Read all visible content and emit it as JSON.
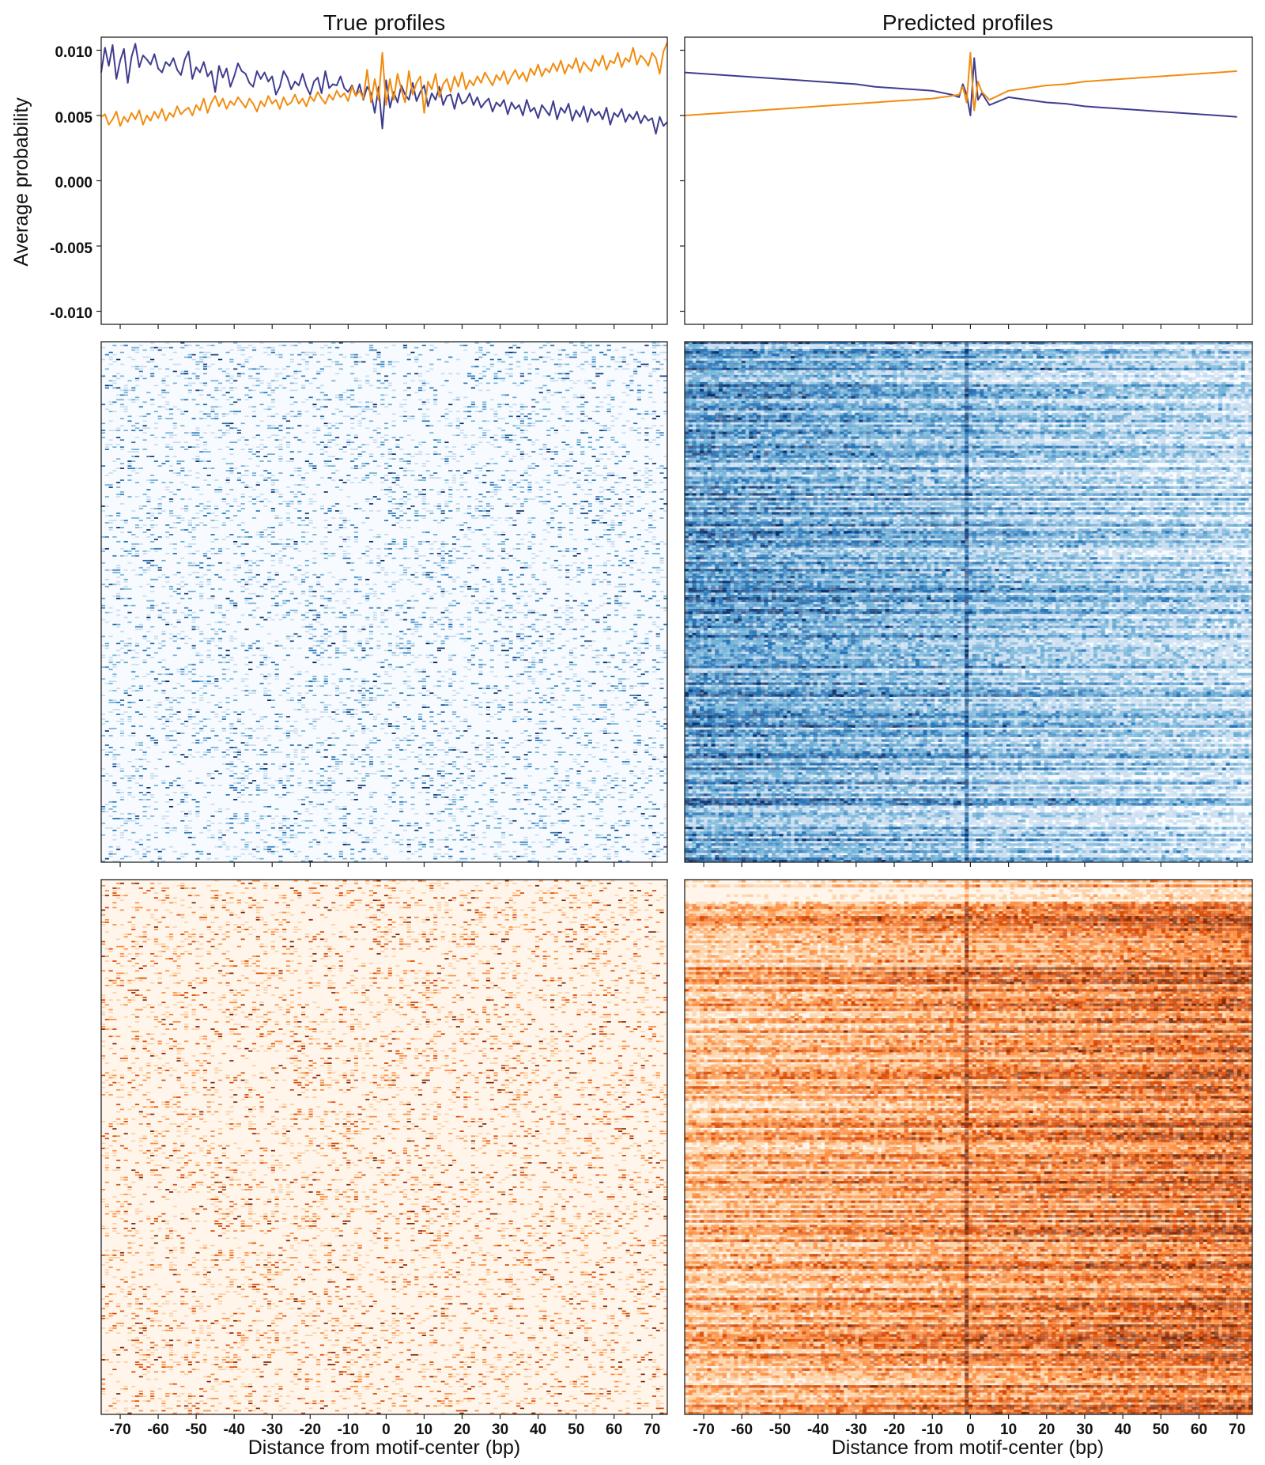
{
  "chart_data": [
    {
      "panel": "true-profile-average",
      "type": "line",
      "title": "True profiles",
      "ylabel": "Average probability",
      "xlabel": "",
      "xlim": [
        -75,
        74
      ],
      "ylim": [
        -0.011,
        0.011
      ],
      "yticks": [
        "0.010",
        "0.005",
        "0.000",
        "-0.005",
        "-0.010"
      ],
      "series": [
        {
          "color": "#3f3d8f",
          "x_start": -75,
          "x_step": 1,
          "values": [
            0.0083,
            0.0102,
            0.0088,
            0.0104,
            0.0078,
            0.0092,
            0.0101,
            0.0075,
            0.0095,
            0.0105,
            0.0087,
            0.0096,
            0.0093,
            0.0089,
            0.0097,
            0.0086,
            0.0083,
            0.0091,
            0.0088,
            0.0094,
            0.0085,
            0.0081,
            0.0093,
            0.0099,
            0.0078,
            0.0087,
            0.0083,
            0.0091,
            0.008,
            0.0084,
            0.0068,
            0.0088,
            0.0079,
            0.0086,
            0.0072,
            0.008,
            0.009,
            0.0084,
            0.0082,
            0.0075,
            0.0072,
            0.0084,
            0.0078,
            0.0083,
            0.0076,
            0.008,
            0.0066,
            0.0072,
            0.0084,
            0.0079,
            0.007,
            0.0076,
            0.0073,
            0.0082,
            0.0072,
            0.0066,
            0.0076,
            0.0079,
            0.0067,
            0.0084,
            0.0071,
            0.0074,
            0.0073,
            0.008,
            0.0071,
            0.0068,
            0.0073,
            0.0065,
            0.0074,
            0.0062,
            0.0072,
            0.0067,
            0.0052,
            0.0072,
            0.004,
            0.0077,
            0.0056,
            0.0068,
            0.006,
            0.0073,
            0.0066,
            0.0062,
            0.0075,
            0.0061,
            0.0068,
            0.0073,
            0.0057,
            0.0067,
            0.0062,
            0.0072,
            0.0058,
            0.0065,
            0.0066,
            0.0055,
            0.0067,
            0.0059,
            0.0061,
            0.0067,
            0.0058,
            0.0064,
            0.0056,
            0.006,
            0.0063,
            0.0053,
            0.006,
            0.0057,
            0.0062,
            0.0051,
            0.006,
            0.0055,
            0.0058,
            0.005,
            0.0062,
            0.0053,
            0.0056,
            0.0048,
            0.0058,
            0.0054,
            0.005,
            0.0061,
            0.0047,
            0.0056,
            0.0052,
            0.0059,
            0.0046,
            0.0054,
            0.0049,
            0.0057,
            0.0045,
            0.0055,
            0.005,
            0.0053,
            0.0047,
            0.0056,
            0.0043,
            0.0052,
            0.0049,
            0.0055,
            0.0045,
            0.0051,
            0.0047,
            0.0053,
            0.0044,
            0.005,
            0.0046,
            0.0048,
            0.0036,
            0.0049,
            0.0042,
            0.0045
          ]
        },
        {
          "color": "#f28c0f",
          "x_start": -75,
          "x_step": 1,
          "values": [
            0.0049,
            0.0051,
            0.0043,
            0.0047,
            0.0053,
            0.0042,
            0.0049,
            0.0045,
            0.0052,
            0.0047,
            0.0054,
            0.0043,
            0.005,
            0.0046,
            0.0053,
            0.0048,
            0.0055,
            0.0046,
            0.0052,
            0.0049,
            0.0057,
            0.0051,
            0.0054,
            0.0056,
            0.005,
            0.0058,
            0.0054,
            0.0063,
            0.0052,
            0.006,
            0.0065,
            0.0057,
            0.0063,
            0.0055,
            0.0061,
            0.0058,
            0.0064,
            0.006,
            0.0056,
            0.0063,
            0.0059,
            0.0053,
            0.0061,
            0.0057,
            0.0065,
            0.0059,
            0.0062,
            0.0055,
            0.0064,
            0.0058,
            0.006,
            0.0066,
            0.0059,
            0.0063,
            0.0057,
            0.0065,
            0.0061,
            0.0068,
            0.0063,
            0.0059,
            0.0066,
            0.0062,
            0.0069,
            0.0064,
            0.0067,
            0.0061,
            0.0072,
            0.0065,
            0.0069,
            0.0063,
            0.0085,
            0.006,
            0.0078,
            0.0062,
            0.0098,
            0.0058,
            0.0078,
            0.0062,
            0.0082,
            0.007,
            0.006,
            0.0084,
            0.0066,
            0.0075,
            0.008,
            0.0052,
            0.0076,
            0.007,
            0.0082,
            0.0064,
            0.0074,
            0.0078,
            0.0068,
            0.008,
            0.0072,
            0.0083,
            0.007,
            0.0077,
            0.0073,
            0.008,
            0.0075,
            0.0083,
            0.0078,
            0.0073,
            0.0081,
            0.0077,
            0.0084,
            0.0074,
            0.008,
            0.0085,
            0.0078,
            0.0083,
            0.0076,
            0.0086,
            0.0081,
            0.0089,
            0.008,
            0.0086,
            0.0083,
            0.009,
            0.0084,
            0.0092,
            0.0082,
            0.0089,
            0.0086,
            0.0094,
            0.0083,
            0.0091,
            0.0087,
            0.0084,
            0.0093,
            0.0088,
            0.0096,
            0.0085,
            0.0092,
            0.009,
            0.0098,
            0.0087,
            0.0094,
            0.0091,
            0.0102,
            0.0089,
            0.0096,
            0.0093,
            0.0088,
            0.0098,
            0.0094,
            0.0082,
            0.0099,
            0.0106
          ]
        }
      ]
    },
    {
      "panel": "predicted-profile-average",
      "type": "line",
      "title": "Predicted profiles",
      "ylabel": "",
      "xlabel": "",
      "xlim": [
        -75,
        74
      ],
      "ylim": [
        -0.011,
        0.011
      ],
      "series": [
        {
          "color": "#3f3d8f",
          "x_start": -75,
          "x_step": 5,
          "values": [
            0.0083,
            0.0082,
            0.0081,
            0.008,
            0.0079,
            0.0078,
            0.0077,
            0.0076,
            0.0075,
            0.0074,
            0.0072,
            0.0071,
            0.007,
            0.0069,
            0.0066,
            0.0063,
            0.0058,
            0.0064,
            0.0062,
            0.006,
            0.0059,
            0.0057,
            0.0056,
            0.0055,
            0.0054,
            0.0053,
            0.0052,
            0.0051,
            0.005,
            0.0049
          ]
        },
        {
          "color": "#f28c0f",
          "x_start": -75,
          "x_step": 5,
          "values": [
            0.005,
            0.0051,
            0.0052,
            0.0053,
            0.0054,
            0.0055,
            0.0056,
            0.0057,
            0.0058,
            0.0059,
            0.006,
            0.0061,
            0.0062,
            0.0063,
            0.0065,
            0.0068,
            0.0062,
            0.0069,
            0.0071,
            0.0073,
            0.0074,
            0.0076,
            0.0077,
            0.0078,
            0.0079,
            0.008,
            0.0081,
            0.0082,
            0.0083,
            0.0084
          ]
        }
      ],
      "center_spike": {
        "color_orange": "#f28c0f",
        "color_purple": "#3f3d8f",
        "x": [
          -3,
          -2,
          -1,
          0,
          1,
          2,
          3
        ],
        "orange": [
          0.0066,
          0.0072,
          0.006,
          0.0098,
          0.0054,
          0.0076,
          0.0068
        ],
        "purple": [
          0.0064,
          0.0074,
          0.0066,
          0.005,
          0.0094,
          0.0062,
          0.0067
        ]
      }
    },
    {
      "panel": "true-heatmap-blue",
      "type": "heatmap",
      "colormap": "Blues",
      "colors": [
        "#f7fbff",
        "#c6dbef",
        "#6baed6",
        "#2171b5",
        "#08306b"
      ],
      "xlim": [
        -75,
        74
      ]
    },
    {
      "panel": "predicted-heatmap-blue",
      "type": "heatmap",
      "colormap": "Blues",
      "colors": [
        "#f7fbff",
        "#c6dbef",
        "#6baed6",
        "#2171b5",
        "#08306b"
      ],
      "xlim": [
        -75,
        74
      ]
    },
    {
      "panel": "true-heatmap-orange",
      "type": "heatmap",
      "colormap": "Oranges",
      "colors": [
        "#fff5eb",
        "#fdd0a2",
        "#fd8d3c",
        "#d94801",
        "#7f2704"
      ],
      "xlim": [
        -75,
        74
      ],
      "xlabel": "Distance from motif-center (bp)"
    },
    {
      "panel": "predicted-heatmap-orange",
      "type": "heatmap",
      "colormap": "Oranges",
      "colors": [
        "#fff5eb",
        "#fdd0a2",
        "#fd8d3c",
        "#d94801",
        "#7f2704"
      ],
      "xlim": [
        -75,
        74
      ],
      "xlabel": "Distance from motif-center (bp)"
    }
  ],
  "xticks": [
    -70,
    -60,
    -50,
    -40,
    -30,
    -20,
    -10,
    0,
    10,
    20,
    30,
    40,
    50,
    60,
    70
  ],
  "xtick_labels": [
    "-70",
    "-60",
    "-50",
    "-40",
    "-30",
    "-20",
    "-10",
    "0",
    "10",
    "20",
    "30",
    "40",
    "50",
    "60",
    "70"
  ],
  "labels": {
    "title_true": "True profiles",
    "title_pred": "Predicted profiles",
    "ylabel": "Average probability",
    "xlabel": "Distance from motif-center (bp)"
  }
}
